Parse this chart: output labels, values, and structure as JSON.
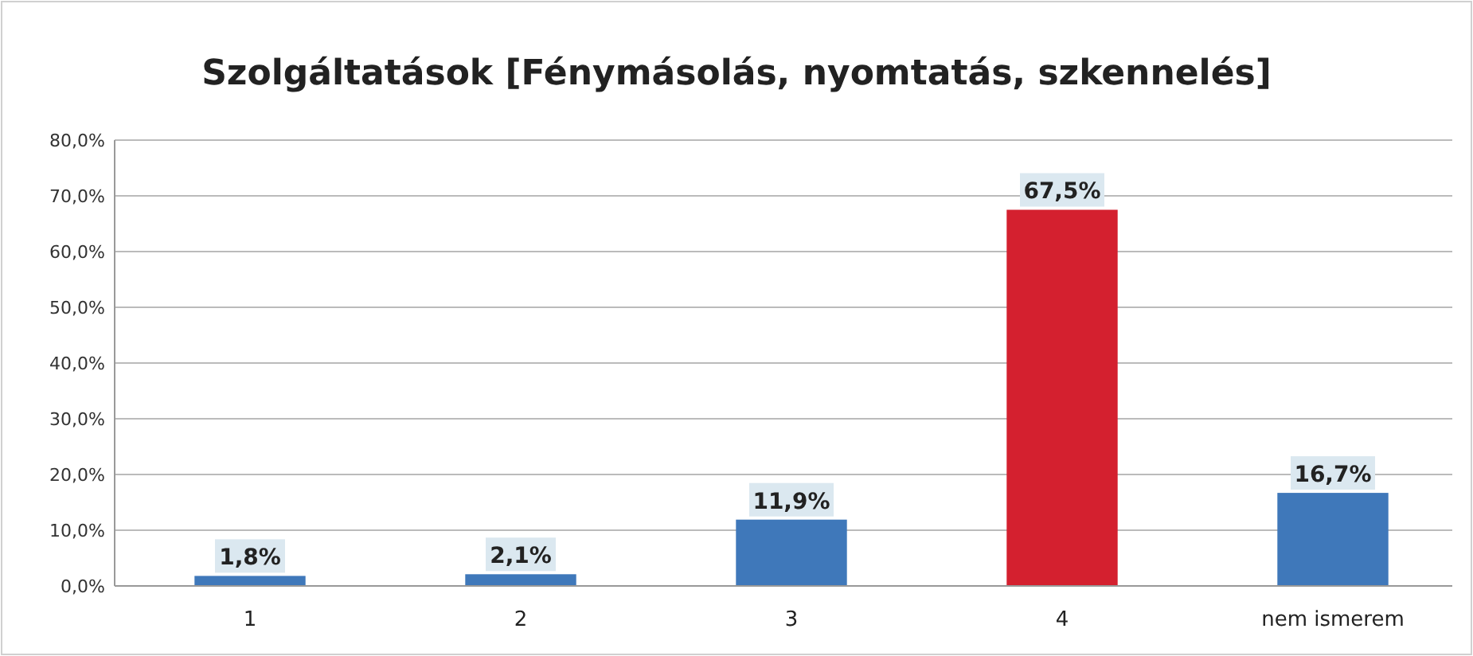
{
  "chart_data": {
    "type": "bar",
    "title": "Szolgáltatások [Fénymásolás, nyomtatás, szkennelés]",
    "categories": [
      "1",
      "2",
      "3",
      "4",
      "nem ismerem"
    ],
    "values": [
      1.8,
      2.1,
      11.9,
      67.5,
      16.7
    ],
    "colors": [
      "#3f78ba",
      "#3f78ba",
      "#3f78ba",
      "#d4202f",
      "#3f78ba"
    ],
    "value_labels": [
      "1,8%",
      "2,1%",
      "11,9%",
      "67,5%",
      "16,7%"
    ],
    "ylim": [
      0,
      80
    ],
    "yticks": [
      {
        "value": 0,
        "label": "0,0%"
      },
      {
        "value": 10,
        "label": "10,0%"
      },
      {
        "value": 20,
        "label": "20,0%"
      },
      {
        "value": 30,
        "label": "30,0%"
      },
      {
        "value": 40,
        "label": "40,0%"
      },
      {
        "value": 50,
        "label": "50,0%"
      },
      {
        "value": 60,
        "label": "60,0%"
      },
      {
        "value": 70,
        "label": "70,0%"
      },
      {
        "value": 80,
        "label": "80,0%"
      }
    ],
    "grid": "y"
  }
}
